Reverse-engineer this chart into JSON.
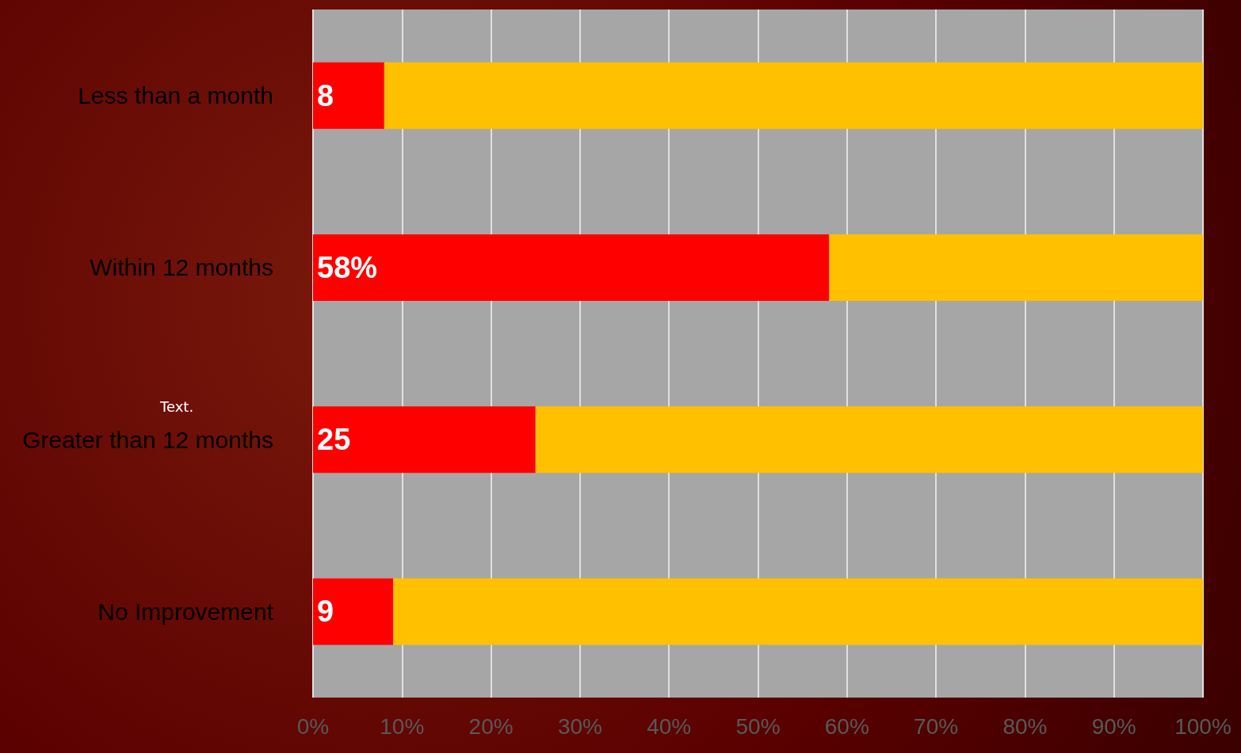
{
  "chart_data": {
    "type": "bar",
    "orientation": "horizontal",
    "stacked": true,
    "categories": [
      "Less than a month",
      "Within 12 months",
      "Greater than 12 months",
      "No Improvement"
    ],
    "series": [
      {
        "color": "#ff0000",
        "values": [
          8,
          58,
          25,
          9
        ],
        "value_labels": [
          "8",
          "58%",
          "25",
          "9"
        ]
      },
      {
        "color": "#ffc000",
        "values": [
          92,
          42,
          75,
          91
        ]
      }
    ],
    "xlim": [
      0,
      100
    ],
    "xticks": [
      {
        "value": 0,
        "label": "0%"
      },
      {
        "value": 10,
        "label": "10%"
      },
      {
        "value": 20,
        "label": "20%"
      },
      {
        "value": 30,
        "label": "30%"
      },
      {
        "value": 40,
        "label": "40%"
      },
      {
        "value": 50,
        "label": "50%"
      },
      {
        "value": 60,
        "label": "60%"
      },
      {
        "value": 70,
        "label": "70%"
      },
      {
        "value": 80,
        "label": "80%"
      },
      {
        "value": 90,
        "label": "90%"
      },
      {
        "value": 100,
        "label": "100%"
      }
    ],
    "grid": "x",
    "annotations": [
      "Text."
    ]
  }
}
